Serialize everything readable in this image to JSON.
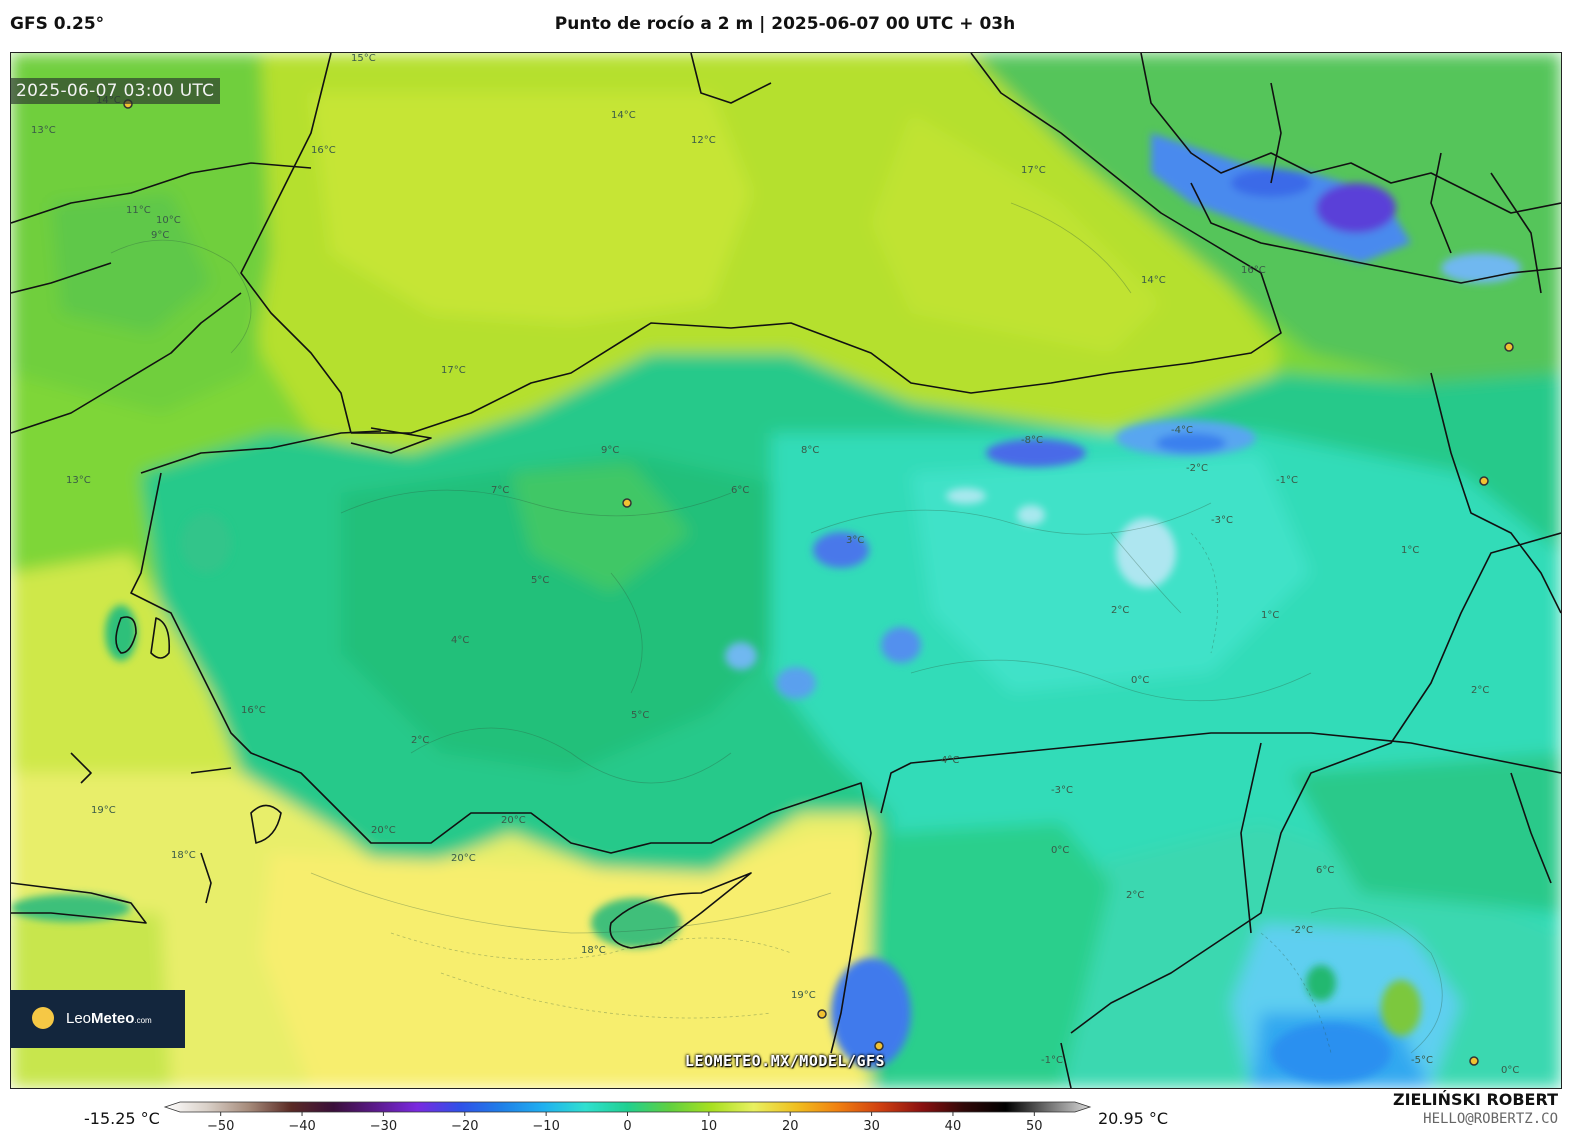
{
  "header": {
    "model": "GFS 0.25°",
    "title": "Punto de rocío a 2 m | 2025-06-07 00 UTC + 03h"
  },
  "map": {
    "timestamp": "2025-06-07 03:00 UTC",
    "url": "LEOMETEO.MX/MODEL/GFS",
    "contour_labels": [
      "15°C",
      "14°C",
      "13°C",
      "16°C",
      "17°C",
      "12°C",
      "11°C",
      "10°C",
      "9°C",
      "8°C",
      "7°C",
      "6°C",
      "5°C",
      "4°C",
      "3°C",
      "2°C",
      "1°C",
      "0°C",
      "-1°C",
      "-2°C",
      "-3°C",
      "-4°C",
      "-5°C",
      "-8°C",
      "18°C",
      "19°C",
      "20°C"
    ]
  },
  "logo": {
    "brand_main": "Leo",
    "brand_bold": "Meteo",
    "brand_suffix": ".com"
  },
  "colorbar": {
    "min_label": "-15.25 °C",
    "max_label": "20.95 °C",
    "ticks": [
      "−50",
      "−40",
      "−30",
      "−20",
      "−10",
      "0",
      "10",
      "20",
      "30",
      "40",
      "50"
    ],
    "tick_values": [
      -50,
      -40,
      -30,
      -20,
      -10,
      0,
      10,
      20,
      30,
      40,
      50
    ],
    "range": [
      -55,
      55
    ],
    "colors": [
      "#ffffff",
      "#d9d0c8",
      "#a58a7a",
      "#5a2a25",
      "#3a0f3a",
      "#5a1a8a",
      "#7a2ae0",
      "#3050e8",
      "#1f7fe8",
      "#20b0f0",
      "#30e0d0",
      "#20d090",
      "#60d040",
      "#a8e020",
      "#e8f060",
      "#f0c020",
      "#f08010",
      "#d04010",
      "#8a1010",
      "#300808",
      "#000000",
      "#707070",
      "#d8d8d8"
    ]
  },
  "credits": {
    "author": "ZIELIŃSKI ROBERT",
    "email": "HELLO@ROBERTZ.CO"
  }
}
